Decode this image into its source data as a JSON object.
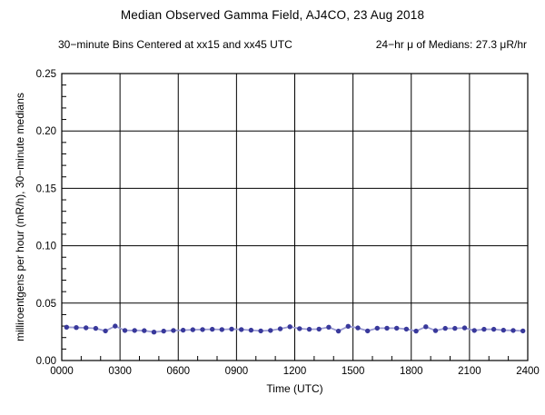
{
  "chart_data": {
    "type": "line",
    "title": "Median Observed Gamma Field, AJ4CO, 23 Aug 2018",
    "subtitle_left": "30−minute Bins Centered at xx15 and xx45 UTC",
    "subtitle_right": "24−hr μ of Medians: 27.3 μR/hr",
    "xlabel": "Time (UTC)",
    "ylabel": "milliroentgens per hour (mR/h), 30−minute medians",
    "xlim": [
      0,
      24
    ],
    "ylim": [
      0,
      0.25
    ],
    "x_ticks": [
      0,
      3,
      6,
      9,
      12,
      15,
      18,
      21,
      24
    ],
    "x_tick_labels": [
      "0000",
      "0300",
      "0600",
      "0900",
      "1200",
      "1500",
      "1800",
      "2100",
      "2400"
    ],
    "x_minor_step_hours": 1,
    "y_ticks": [
      0,
      0.05,
      0.1,
      0.15,
      0.2,
      0.25
    ],
    "y_tick_labels": [
      "0.00",
      "0.05",
      "0.10",
      "0.15",
      "0.20",
      "0.25"
    ],
    "y_minor_step": 0.01,
    "grid": "major gridlines both axes, black, boxed frame",
    "legend": "none",
    "line_color": "#9a9ad2",
    "marker_color": "#39399b",
    "axis_color": "#000000",
    "mean_of_medians_uR_hr": 27.3,
    "times": [
      "0015",
      "0045",
      "0115",
      "0145",
      "0215",
      "0245",
      "0315",
      "0345",
      "0415",
      "0445",
      "0515",
      "0545",
      "0615",
      "0645",
      "0715",
      "0745",
      "0815",
      "0845",
      "0915",
      "0945",
      "1015",
      "1045",
      "1115",
      "1145",
      "1215",
      "1245",
      "1315",
      "1345",
      "1415",
      "1445",
      "1515",
      "1545",
      "1615",
      "1645",
      "1715",
      "1745",
      "1815",
      "1845",
      "1915",
      "1945",
      "2015",
      "2045",
      "2115",
      "2145",
      "2215",
      "2245",
      "2315",
      "2345"
    ],
    "values": [
      0.029,
      0.0287,
      0.0285,
      0.028,
      0.0258,
      0.03,
      0.0262,
      0.0262,
      0.026,
      0.0248,
      0.0256,
      0.0262,
      0.0264,
      0.0268,
      0.027,
      0.0272,
      0.027,
      0.0274,
      0.027,
      0.0264,
      0.0258,
      0.0262,
      0.0276,
      0.0294,
      0.0278,
      0.0272,
      0.0274,
      0.029,
      0.0256,
      0.0298,
      0.0284,
      0.0258,
      0.0282,
      0.0282,
      0.0282,
      0.0274,
      0.0256,
      0.0294,
      0.026,
      0.028,
      0.028,
      0.0284,
      0.0262,
      0.0272,
      0.0272,
      0.0264,
      0.0262,
      0.0258
    ]
  }
}
